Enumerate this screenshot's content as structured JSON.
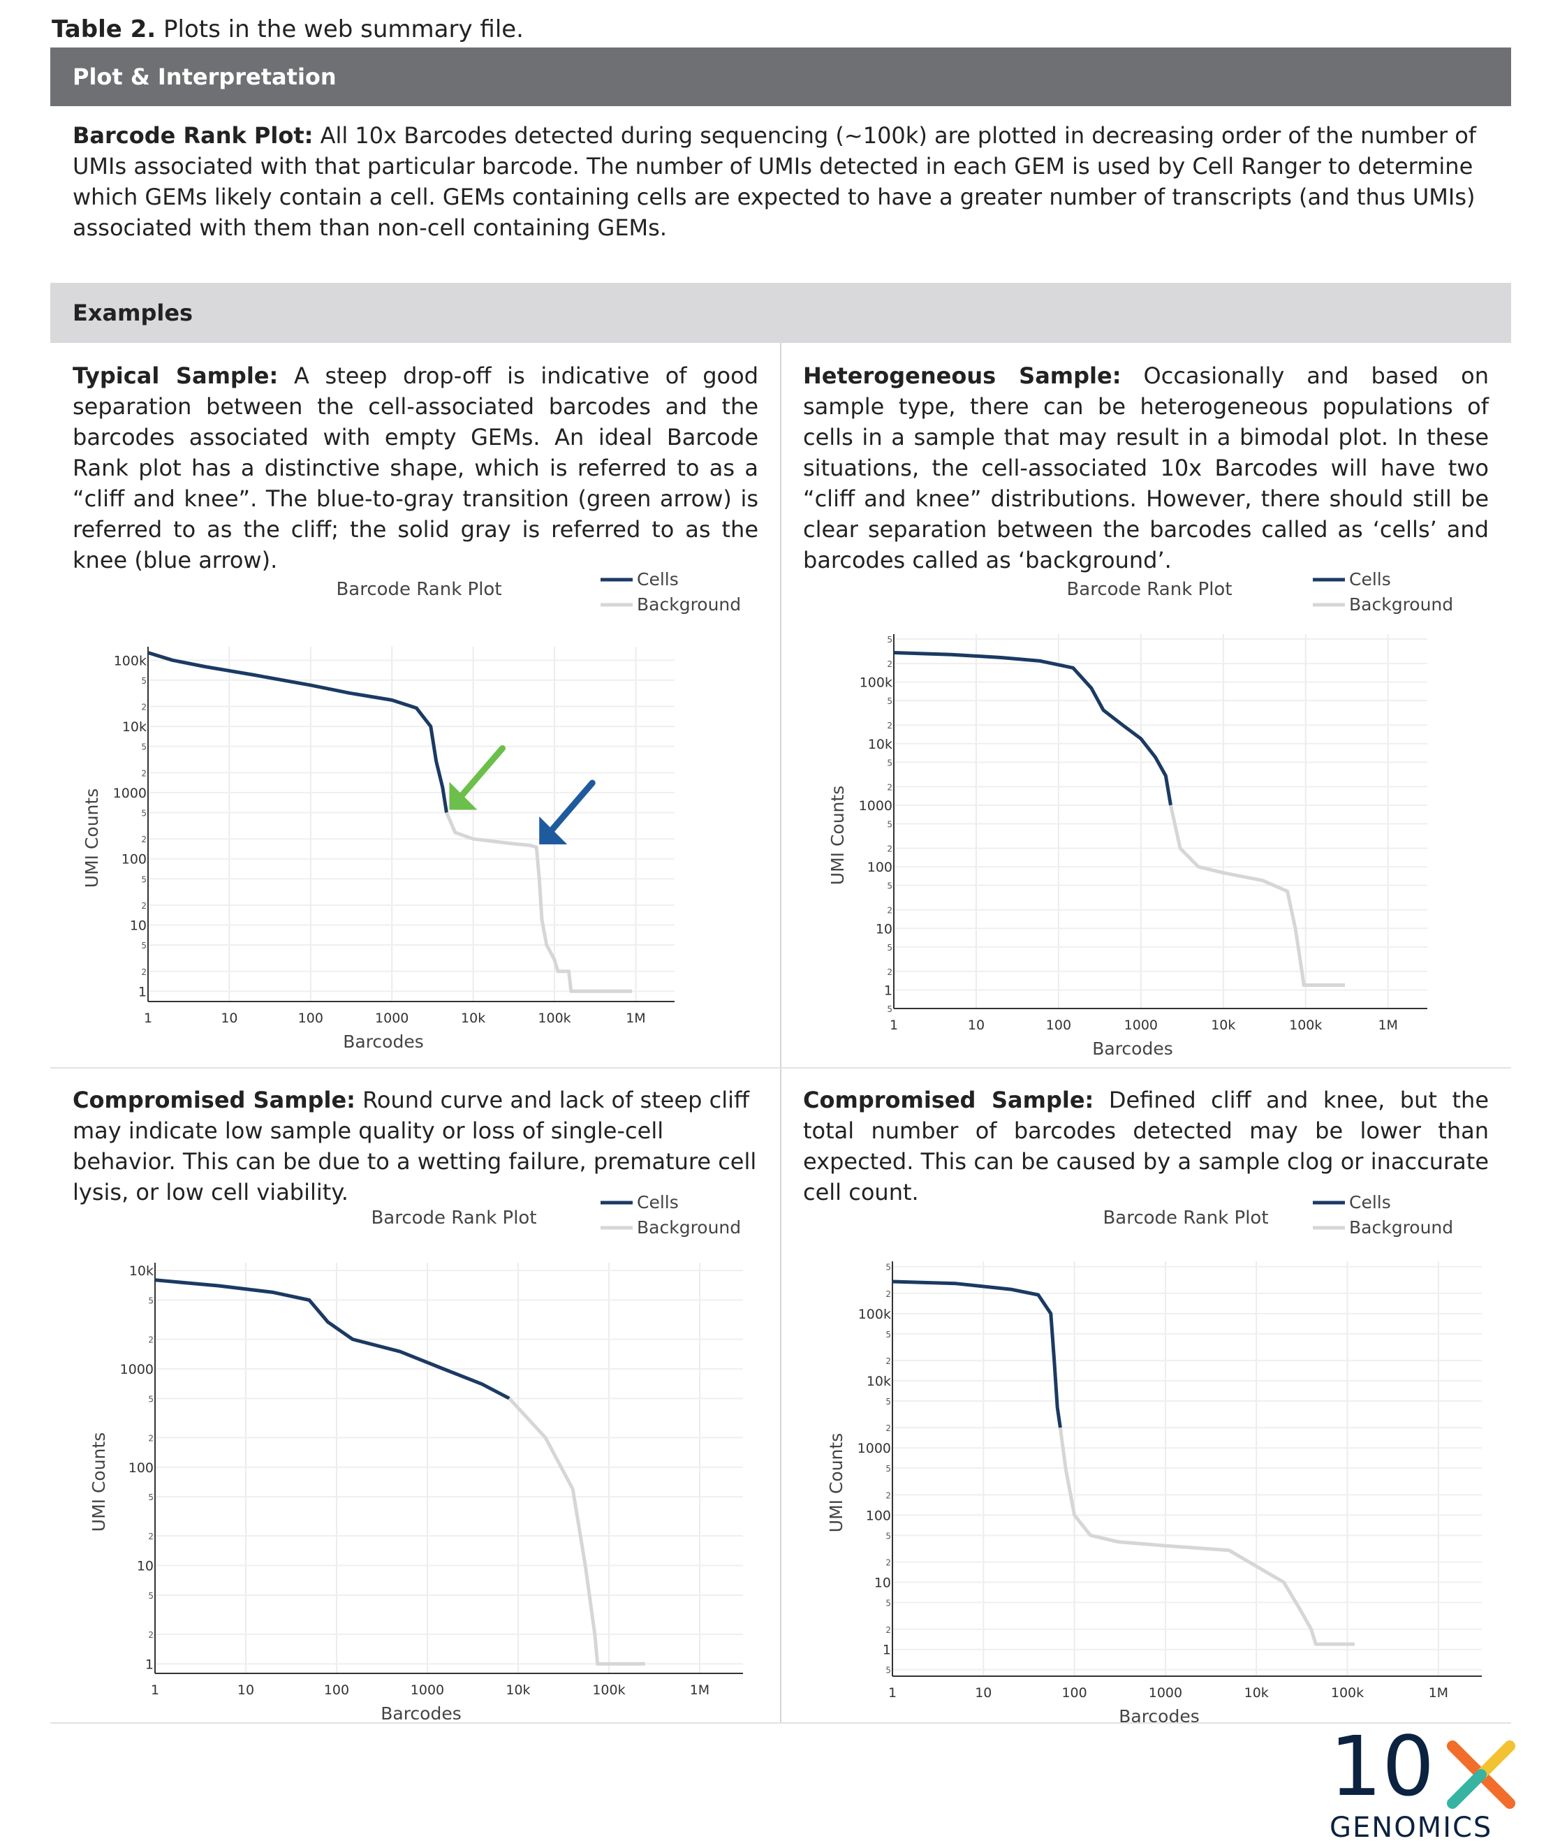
{
  "caption": {
    "bold": "Table 2.",
    "text": " Plots in the web summary file."
  },
  "header_plot": "Plot & Interpretation",
  "intro": {
    "bold": "Barcode Rank Plot:",
    "text": " All 10x Barcodes detected during sequencing (~100k) are plotted in decreasing order of the number of UMIs associated with that particular barcode. The number of UMIs detected in each GEM is used by Cell Ranger to determine which GEMs likely contain a cell. GEMs containing cells are expected to have a greater number of transcripts (and thus UMIs) associated with them than non-cell containing GEMs."
  },
  "header_examples": "Examples",
  "examples": [
    {
      "bold": "Typical Sample:",
      "text": " A steep drop-off is indicative of good separation between the cell-associated barcodes and the barcodes associated with empty GEMs. An ideal Barcode Rank plot has a distinctive shape, which is referred to as a “cliff and knee”. The blue-to-gray transition (green arrow) is referred to as the cliff; the solid gray is referred to as the knee (blue arrow)."
    },
    {
      "bold": "Heterogeneous Sample:",
      "text": " Occasionally and based on sample type, there can be heterogeneous populations of cells in a sample that may result in a bimodal plot. In these situations, the cell-associated 10x Barcodes will have two “cliff and knee” distributions. However, there should still be clear separation between the barcodes called as ‘cells’ and barcodes called as ‘background’."
    },
    {
      "bold": "Compromised Sample:",
      "text": " Round curve and lack of steep cliff may indicate low sample quality or loss of single-cell behavior. This can be due to a wetting failure, premature cell lysis, or low cell viability."
    },
    {
      "bold": "Compromised Sample:",
      "text": " Defined cliff and knee, but the total number of barcodes detected may be lower than expected. This can be caused by a sample clog or inaccurate cell count."
    }
  ],
  "colors": {
    "cells": "#1b3a63",
    "cells_transition": "#2f6db3",
    "background": "#d6d6d6",
    "green_arrow": "#6cbf4a",
    "blue_arrow": "#1f5a9e",
    "header_dark": "#6f7073",
    "header_light": "#d9d9dc"
  },
  "chart_data": [
    {
      "type": "line",
      "title": "Barcode Rank Plot",
      "xlabel": "Barcodes",
      "ylabel": "UMI Counts",
      "x_scale": "log",
      "y_scale": "log",
      "xlim": [
        1,
        3000000
      ],
      "ylim": [
        0.7,
        160000
      ],
      "x_ticks": [
        "1",
        "10",
        "100",
        "1000",
        "10k",
        "100k",
        "1M"
      ],
      "y_ticks": [
        "1",
        "10",
        "100",
        "1000",
        "10k",
        "100k"
      ],
      "legend": [
        "Cells",
        "Background"
      ],
      "legend_position": "top-right",
      "grid": true,
      "series": [
        {
          "name": "Cells",
          "points": [
            [
              1,
              130000
            ],
            [
              2,
              100000
            ],
            [
              5,
              80000
            ],
            [
              20,
              60000
            ],
            [
              100,
              42000
            ],
            [
              300,
              32000
            ],
            [
              1000,
              25000
            ],
            [
              2000,
              19000
            ],
            [
              3000,
              10000
            ],
            [
              3500,
              3000
            ],
            [
              4200,
              1200
            ],
            [
              4700,
              500
            ]
          ]
        },
        {
          "name": "Background",
          "points": [
            [
              4700,
              500
            ],
            [
              6000,
              250
            ],
            [
              10000,
              200
            ],
            [
              30000,
              170
            ],
            [
              50000,
              160
            ],
            [
              60000,
              150
            ],
            [
              65000,
              50
            ],
            [
              70000,
              12
            ],
            [
              80000,
              5
            ],
            [
              100000,
              3
            ],
            [
              110000,
              2
            ],
            [
              150000,
              2
            ],
            [
              160000,
              1
            ],
            [
              900000,
              1
            ]
          ]
        }
      ],
      "annotations": [
        {
          "label": "green-arrow",
          "points_to": [
            4700,
            500
          ]
        },
        {
          "label": "blue-arrow",
          "points_to": [
            60000,
            150
          ]
        }
      ]
    },
    {
      "type": "line",
      "title": "Barcode Rank Plot",
      "xlabel": "Barcodes",
      "ylabel": "UMI Counts",
      "x_scale": "log",
      "y_scale": "log",
      "xlim": [
        1,
        3000000
      ],
      "ylim": [
        0.5,
        600000
      ],
      "x_ticks": [
        "1",
        "10",
        "100",
        "1000",
        "10k",
        "100k",
        "1M"
      ],
      "y_ticks": [
        "1",
        "10",
        "100",
        "1000",
        "10k",
        "100k"
      ],
      "legend": [
        "Cells",
        "Background"
      ],
      "legend_position": "top-right",
      "grid": true,
      "series": [
        {
          "name": "Cells",
          "points": [
            [
              1,
              300000
            ],
            [
              5,
              280000
            ],
            [
              20,
              250000
            ],
            [
              60,
              220000
            ],
            [
              150,
              170000
            ],
            [
              250,
              80000
            ],
            [
              350,
              35000
            ],
            [
              600,
              20000
            ],
            [
              1000,
              12000
            ],
            [
              1500,
              6000
            ],
            [
              2000,
              3000
            ],
            [
              2300,
              1000
            ]
          ]
        },
        {
          "name": "Background",
          "points": [
            [
              2300,
              1000
            ],
            [
              3000,
              200
            ],
            [
              5000,
              100
            ],
            [
              10000,
              80
            ],
            [
              30000,
              60
            ],
            [
              60000,
              40
            ],
            [
              75000,
              10
            ],
            [
              90000,
              2
            ],
            [
              95000,
              1.2
            ],
            [
              300000,
              1.2
            ]
          ]
        }
      ]
    },
    {
      "type": "line",
      "title": "Barcode Rank Plot",
      "xlabel": "Barcodes",
      "ylabel": "UMI Counts",
      "x_scale": "log",
      "y_scale": "log",
      "xlim": [
        1,
        3000000
      ],
      "ylim": [
        0.8,
        12000
      ],
      "x_ticks": [
        "1",
        "10",
        "100",
        "1000",
        "10k",
        "100k",
        "1M"
      ],
      "y_ticks": [
        "1",
        "10",
        "100",
        "1000",
        "10k"
      ],
      "legend": [
        "Cells",
        "Background"
      ],
      "legend_position": "top-right",
      "grid": true,
      "series": [
        {
          "name": "Cells",
          "points": [
            [
              1,
              8000
            ],
            [
              5,
              7000
            ],
            [
              20,
              6000
            ],
            [
              50,
              5000
            ],
            [
              80,
              3000
            ],
            [
              150,
              2000
            ],
            [
              500,
              1500
            ],
            [
              1500,
              1000
            ],
            [
              4000,
              700
            ],
            [
              8000,
              500
            ]
          ]
        },
        {
          "name": "Background",
          "points": [
            [
              8000,
              500
            ],
            [
              20000,
              200
            ],
            [
              40000,
              60
            ],
            [
              55000,
              10
            ],
            [
              70000,
              2
            ],
            [
              75000,
              1
            ],
            [
              250000,
              1
            ]
          ]
        }
      ]
    },
    {
      "type": "line",
      "title": "Barcode Rank Plot",
      "xlabel": "Barcodes",
      "ylabel": "UMI Counts",
      "x_scale": "log",
      "y_scale": "log",
      "xlim": [
        1,
        3000000
      ],
      "ylim": [
        0.4,
        600000
      ],
      "x_ticks": [
        "1",
        "10",
        "100",
        "1000",
        "10k",
        "100k",
        "1M"
      ],
      "y_ticks": [
        "1",
        "10",
        "100",
        "1000",
        "10k",
        "100k"
      ],
      "legend": [
        "Cells",
        "Background"
      ],
      "legend_position": "top-right",
      "grid": true,
      "series": [
        {
          "name": "Cells",
          "points": [
            [
              1,
              300000
            ],
            [
              5,
              280000
            ],
            [
              20,
              230000
            ],
            [
              40,
              190000
            ],
            [
              55,
              100000
            ],
            [
              60,
              20000
            ],
            [
              65,
              4000
            ],
            [
              70,
              2000
            ]
          ]
        },
        {
          "name": "Background",
          "points": [
            [
              70,
              2000
            ],
            [
              80,
              500
            ],
            [
              100,
              100
            ],
            [
              150,
              50
            ],
            [
              300,
              40
            ],
            [
              1000,
              35
            ],
            [
              5000,
              30
            ],
            [
              20000,
              10
            ],
            [
              30000,
              4
            ],
            [
              40000,
              2
            ],
            [
              45000,
              1.2
            ],
            [
              120000,
              1.2
            ]
          ]
        }
      ]
    }
  ]
}
